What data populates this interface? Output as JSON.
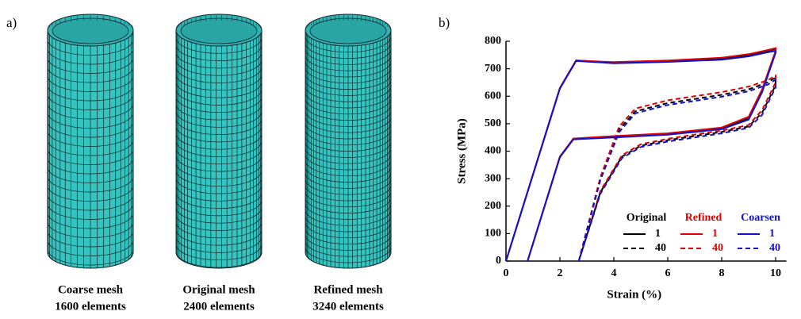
{
  "panel_labels": [
    "a)",
    "b)"
  ],
  "meshes": [
    {
      "name": "Coarse mesh",
      "elements": "1600 elements"
    },
    {
      "name": "Original mesh",
      "elements": "2400 elements"
    },
    {
      "name": "Refined mesh",
      "elements": "3240 elements"
    }
  ],
  "chart_data": {
    "type": "line",
    "x_label": "Strain (%)",
    "y_label": "Stress (MPa)",
    "xlim": [
      0,
      10.4
    ],
    "ylim": [
      0,
      800
    ],
    "xticks": [
      0,
      2,
      4,
      6,
      8,
      10
    ],
    "yticks": [
      0,
      100,
      200,
      300,
      400,
      500,
      600,
      700,
      800
    ],
    "grid": false,
    "legend": "lower right",
    "series": [
      {
        "group": "Original",
        "name": "1",
        "color": "#000000",
        "dash": false,
        "x": [
          0,
          2,
          2.6,
          4,
          6,
          8,
          9,
          9.7,
          10,
          10,
          9.5,
          9,
          8,
          6,
          4,
          2.5,
          2,
          0.8
        ],
        "values": [
          0,
          630,
          730,
          722,
          728,
          738,
          750,
          765,
          772,
          762,
          620,
          520,
          483,
          463,
          453,
          445,
          380,
          0
        ]
      },
      {
        "group": "Original",
        "name": "40",
        "color": "#000000",
        "dash": true,
        "x": [
          2.7,
          3.5,
          4.2,
          4.8,
          6,
          8,
          9,
          9.7,
          10,
          10,
          9.5,
          9,
          8,
          6,
          5,
          4.3,
          3.5,
          2.7
        ],
        "values": [
          0,
          300,
          480,
          545,
          575,
          605,
          625,
          650,
          668,
          640,
          540,
          490,
          470,
          440,
          420,
          380,
          250,
          0
        ]
      },
      {
        "group": "Refined",
        "name": "1",
        "color": "#e00000",
        "dash": false,
        "x": [
          0,
          2,
          2.6,
          4,
          6,
          8,
          9,
          9.7,
          10,
          10,
          9.5,
          9,
          8,
          6,
          4,
          2.5,
          2,
          0.8
        ],
        "values": [
          0,
          630,
          730,
          724,
          730,
          740,
          753,
          768,
          775,
          765,
          625,
          525,
          486,
          465,
          455,
          446,
          380,
          0
        ]
      },
      {
        "group": "Refined",
        "name": "40",
        "color": "#e00000",
        "dash": true,
        "x": [
          2.7,
          3.5,
          4.2,
          4.8,
          6,
          8,
          9,
          9.7,
          10,
          10,
          9.5,
          9,
          8,
          6,
          5,
          4.3,
          3.5,
          2.7
        ],
        "values": [
          0,
          305,
          490,
          555,
          585,
          615,
          635,
          658,
          675,
          650,
          550,
          495,
          475,
          445,
          425,
          385,
          255,
          0
        ]
      },
      {
        "group": "Coarsen",
        "name": "1",
        "color": "#1010d0",
        "dash": false,
        "x": [
          0,
          2,
          2.6,
          4,
          6,
          8,
          9,
          9.7,
          10,
          10,
          9.5,
          9,
          8,
          6,
          4,
          2.5,
          2,
          0.8
        ],
        "values": [
          0,
          628,
          728,
          720,
          725,
          733,
          745,
          760,
          765,
          758,
          615,
          515,
          480,
          460,
          450,
          443,
          378,
          0
        ]
      },
      {
        "group": "Coarsen",
        "name": "40",
        "color": "#1010d0",
        "dash": true,
        "x": [
          2.7,
          3.5,
          4.2,
          4.8,
          6,
          8,
          9,
          9.7,
          10,
          10,
          9.5,
          9,
          8,
          6,
          5,
          4.3,
          3.5,
          2.7
        ],
        "values": [
          0,
          295,
          470,
          538,
          568,
          598,
          618,
          642,
          660,
          632,
          532,
          485,
          465,
          435,
          415,
          375,
          245,
          0
        ]
      }
    ]
  }
}
